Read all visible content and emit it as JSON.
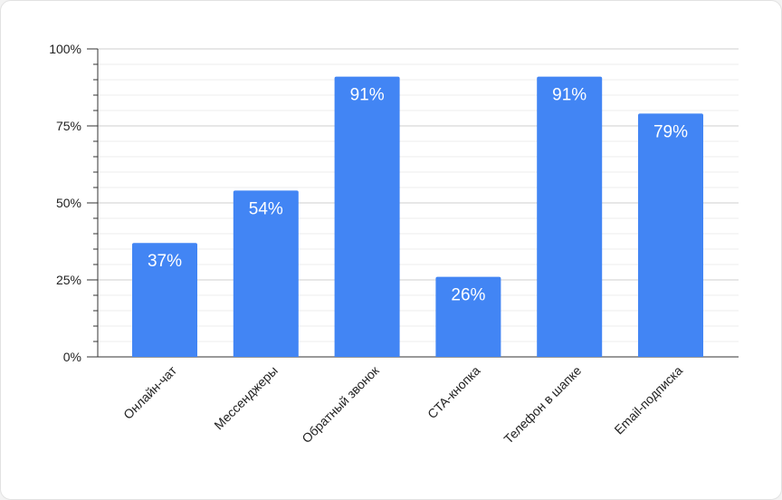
{
  "chart_data": {
    "type": "bar",
    "categories": [
      "Онлайн-чат",
      "Мессенджеры",
      "Обратный звонок",
      "CTA-кнопка",
      "Телефон в шапке",
      "Email-подписка"
    ],
    "values": [
      37,
      54,
      91,
      26,
      91,
      79
    ],
    "value_labels": [
      "37%",
      "54%",
      "91%",
      "26%",
      "91%",
      "79%"
    ],
    "ylim": [
      0,
      100
    ],
    "yticks": [
      0,
      25,
      50,
      75,
      100
    ],
    "ytick_labels": [
      "0%",
      "25%",
      "50%",
      "75%",
      "100%"
    ],
    "minor_ticks": [
      5,
      10,
      15,
      20,
      30,
      35,
      40,
      45,
      55,
      60,
      65,
      70,
      80,
      85,
      90,
      95
    ],
    "grid": true,
    "bar_color": "#4285f4",
    "title": "",
    "xlabel": "",
    "ylabel": ""
  }
}
